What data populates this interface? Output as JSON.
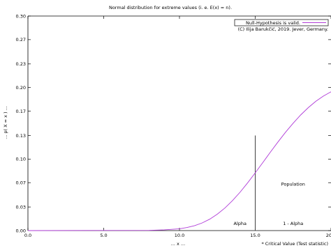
{
  "chart_data": {
    "type": "line",
    "title": "Normal distribution for extreme values (i. e. E(x) = n).",
    "xlabel": "... x ...",
    "ylabel": "... p( X = x ) ...",
    "xlim": [
      0,
      20
    ],
    "ylim": [
      0,
      0.3
    ],
    "x_ticks": [
      {
        "value": 0,
        "label": "0.0"
      },
      {
        "value": 5,
        "label": "5.0"
      },
      {
        "value": 10,
        "label": "10.0"
      },
      {
        "value": 15,
        "label": "15.0"
      },
      {
        "value": 20,
        "label": "20.0"
      }
    ],
    "y_ticks": [
      {
        "value": 0.0,
        "label": "0.00"
      },
      {
        "value": 0.033,
        "label": "0.03"
      },
      {
        "value": 0.067,
        "label": "0.07"
      },
      {
        "value": 0.1,
        "label": "0.10"
      },
      {
        "value": 0.133,
        "label": "0.13"
      },
      {
        "value": 0.167,
        "label": "0.17"
      },
      {
        "value": 0.2,
        "label": "0.20"
      },
      {
        "value": 0.233,
        "label": "0.23"
      },
      {
        "value": 0.267,
        "label": "0.27"
      },
      {
        "value": 0.3,
        "label": "0.30"
      }
    ],
    "grid": false,
    "legend": {
      "position": "top-right"
    },
    "series": [
      {
        "name": "Null-Hypothesis is valid.",
        "color": "#b03cd8",
        "x": [
          0,
          8,
          9,
          10,
          10.5,
          11,
          11.5,
          12,
          12.5,
          13,
          13.5,
          14,
          14.5,
          15,
          15.5,
          16,
          16.5,
          17,
          17.5,
          18,
          18.5,
          19,
          19.5,
          20
        ],
        "y": [
          0,
          0.0003,
          0.001,
          0.0025,
          0.0043,
          0.0069,
          0.0107,
          0.016,
          0.023,
          0.0316,
          0.0419,
          0.0537,
          0.0668,
          0.0807,
          0.0951,
          0.1097,
          0.1239,
          0.1375,
          0.1501,
          0.1617,
          0.1719,
          0.1808,
          0.1881,
          0.1941
        ]
      }
    ],
    "critical_line": {
      "x": 15,
      "y_top": 0.133,
      "color": "#404040"
    },
    "annotations": [
      {
        "text": "(C) Ilija Barukčić, 2019. Jever, Germany.",
        "kind": "copyright"
      },
      {
        "text": "Population",
        "x": 17.5,
        "y": 0.063
      },
      {
        "text": "Alpha",
        "x": 14.0,
        "y": 0.008
      },
      {
        "text": "1 - Alpha",
        "x": 17.5,
        "y": 0.008
      },
      {
        "text": "* Critical Value (Test statistic)",
        "kind": "footnote"
      }
    ]
  }
}
